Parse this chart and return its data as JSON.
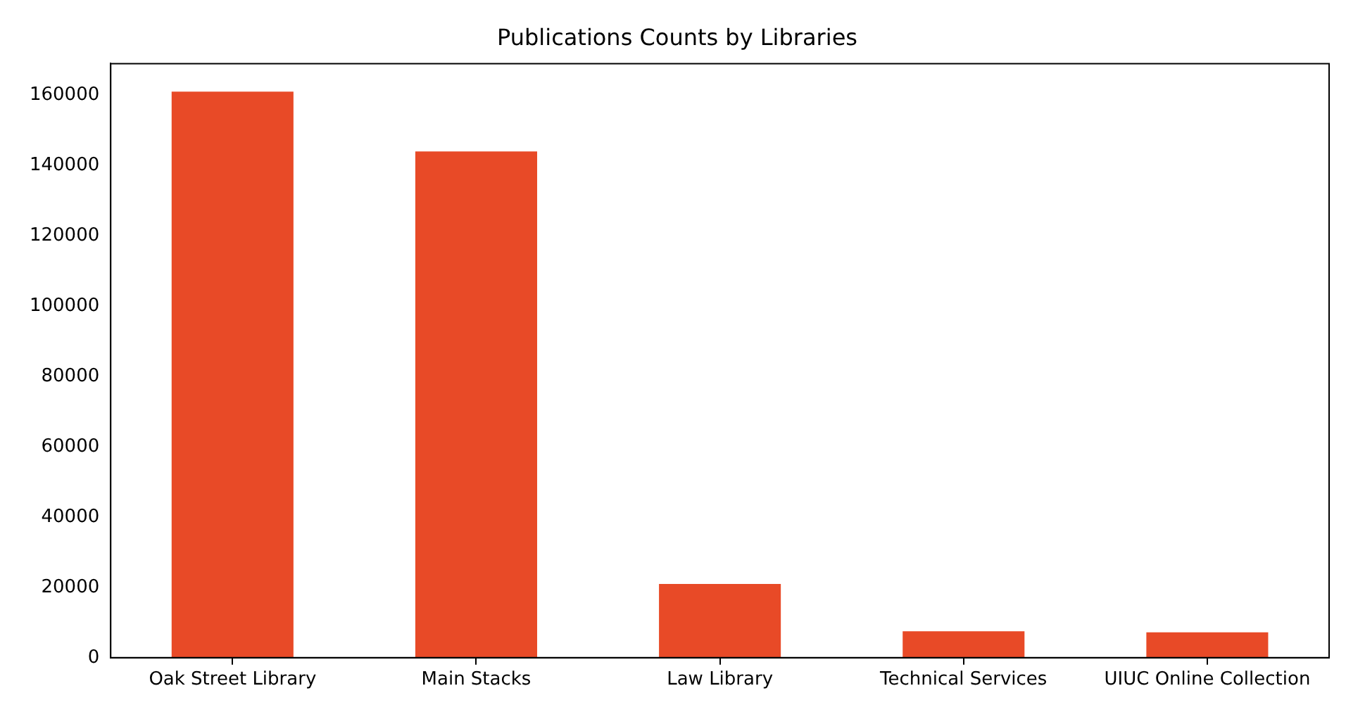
{
  "chart_data": {
    "type": "bar",
    "title": "Publications Counts by Libraries",
    "categories": [
      "Oak Street Library",
      "Main Stacks",
      "Law Library",
      "Technical Services",
      "UIUC Online Collection"
    ],
    "values": [
      161000,
      144000,
      21000,
      7500,
      7200
    ],
    "color": "#e84a27",
    "ylim": [
      0,
      169000
    ],
    "yticks": [
      0,
      20000,
      40000,
      60000,
      80000,
      100000,
      120000,
      140000,
      160000
    ],
    "grid": false,
    "legend": false
  }
}
